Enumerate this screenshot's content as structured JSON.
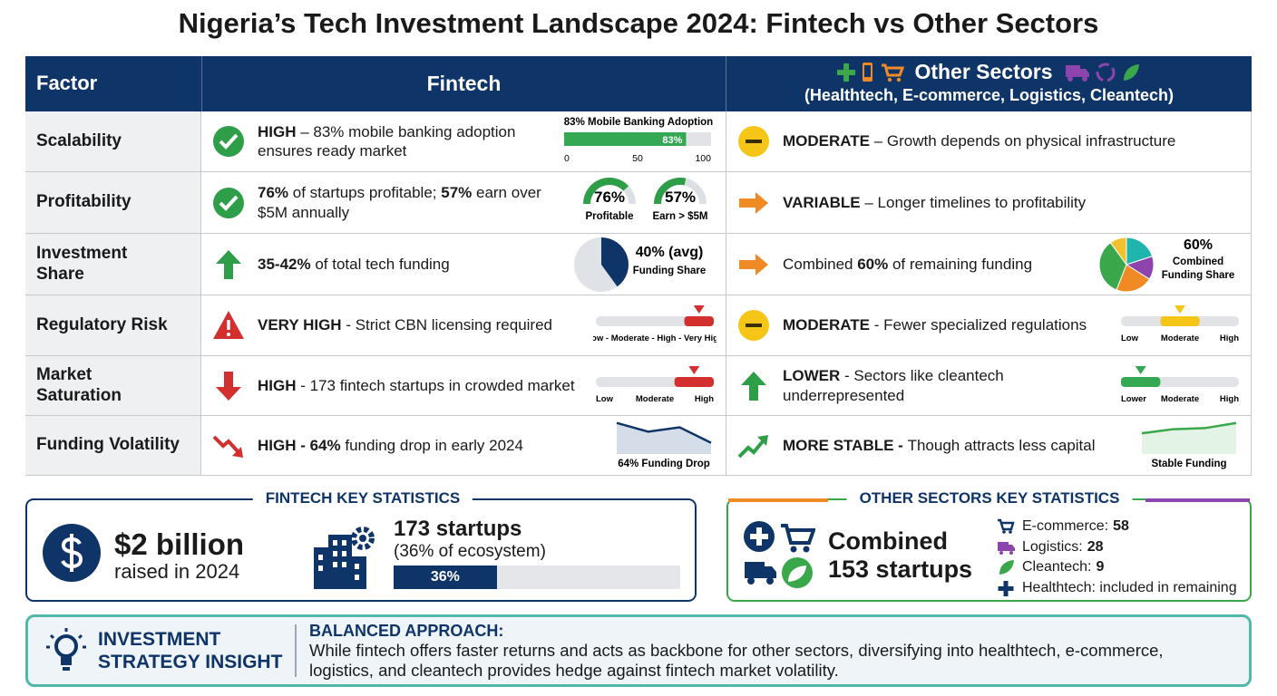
{
  "title": "Nigeria’s Tech Investment Landscape 2024: Fintech vs Other Sectors",
  "table": {
    "headers": {
      "factor": "Factor",
      "fintech": "Fintech",
      "other": "Other Sectors",
      "other_sub": "(Healthtech, E-commerce, Logistics, Cleantech)"
    },
    "rows": [
      {
        "factor": [
          "Scalability"
        ],
        "fintech": {
          "icon": "check",
          "text": [
            {
              "text": "HIGH",
              "bold": true
            },
            {
              "text": " – 83% mobile banking adoption ensures ready market"
            }
          ],
          "chart": {
            "type": "bar",
            "title": "83% Mobile Banking Adoption",
            "value": 83,
            "value_label": "83%",
            "xlim": [
              0,
              100
            ],
            "xticks": [
              0,
              50,
              100
            ],
            "color": "#34a853"
          }
        },
        "other": {
          "icon": "moderate",
          "text": [
            {
              "text": "MODERATE",
              "bold": true
            },
            {
              "text": " – Growth depends on physical infrastructure"
            }
          ]
        }
      },
      {
        "factor": [
          "Profitability"
        ],
        "fintech": {
          "icon": "check",
          "text": [
            {
              "text": "76%",
              "bold": true
            },
            {
              "text": " of startups profitable; "
            },
            {
              "text": "57%",
              "bold": true
            },
            {
              "text": " earn over $5M annually"
            }
          ],
          "chart": {
            "type": "gauges",
            "color": "#2e9e48",
            "items": [
              {
                "value": 76,
                "value_label": "76%",
                "label": "Profitable"
              },
              {
                "value": 57,
                "value_label": "57%",
                "label": "Earn > $5M"
              }
            ]
          }
        },
        "other": {
          "icon": "right",
          "text": [
            {
              "text": "VARIABLE",
              "bold": true
            },
            {
              "text": " – Longer timelines to profitability"
            }
          ]
        }
      },
      {
        "factor": [
          "Investment",
          "Share"
        ],
        "fintech": {
          "icon": "up",
          "text": [
            {
              "text": "35-42%",
              "bold": true
            },
            {
              "text": " of total tech funding"
            }
          ],
          "chart": {
            "type": "pie",
            "value": 40,
            "color": "#0f3568",
            "value_label": "40% (avg)",
            "labels": [
              "Funding Share"
            ]
          }
        },
        "other": {
          "icon": "right",
          "text": [
            {
              "text": "Combined "
            },
            {
              "text": "60%",
              "bold": true
            },
            {
              "text": " of remaining funding"
            }
          ],
          "chart": {
            "type": "pie",
            "value_label": "60%",
            "labels": [
              "Combined",
              "Funding Share"
            ],
            "segments": [
              {
                "value": 20,
                "color": "#1fb5ad"
              },
              {
                "value": 14,
                "color": "#8e44ad"
              },
              {
                "value": 22,
                "color": "#f08a24"
              },
              {
                "value": 34,
                "color": "#3aa84a"
              },
              {
                "value": 10,
                "color": "#f2c12e"
              }
            ]
          }
        }
      },
      {
        "factor": [
          "Regulatory Risk"
        ],
        "fintech": {
          "icon": "warning",
          "text": [
            {
              "text": "VERY HIGH",
              "bold": true
            },
            {
              "text": " - Strict CBN licensing required"
            }
          ],
          "chart": {
            "type": "scale",
            "labels": [
              "Low",
              "Moderate",
              "High",
              "Very High"
            ],
            "separator": " - ",
            "level": 3,
            "color": "#d32f2f"
          }
        },
        "other": {
          "icon": "moderate",
          "text": [
            {
              "text": "MODERATE",
              "bold": true
            },
            {
              "text": " - Fewer specialized regulations"
            }
          ],
          "chart": {
            "type": "scale",
            "labels": [
              "Low",
              "Moderate",
              "High"
            ],
            "level": 1,
            "color": "#f5c518"
          }
        }
      },
      {
        "factor": [
          "Market",
          "Saturation"
        ],
        "fintech": {
          "icon": "down",
          "text": [
            {
              "text": "HIGH",
              "bold": true
            },
            {
              "text": " - 173 fintech startups in crowded market"
            }
          ],
          "chart": {
            "type": "scale",
            "labels": [
              "Low",
              "Moderate",
              "High"
            ],
            "level": 2,
            "color": "#d32f2f"
          }
        },
        "other": {
          "icon": "up",
          "text": [
            {
              "text": "LOWER",
              "bold": true
            },
            {
              "text": " - Sectors like cleantech underrepresented"
            }
          ],
          "chart": {
            "type": "scale",
            "labels": [
              "Lower",
              "Moderate",
              "High"
            ],
            "level": 0,
            "color": "#34a853"
          }
        }
      },
      {
        "factor": [
          "Funding Volatility"
        ],
        "fintech": {
          "icon": "trend-down",
          "text": [
            {
              "text": "HIGH - 64%",
              "bold": true
            },
            {
              "text": " funding drop in early 2024"
            }
          ],
          "chart": {
            "type": "trend",
            "label": "64% Funding Drop",
            "values": [
              100,
              72,
              86,
              36
            ],
            "color": "#0f3568",
            "fill": "#d5dde8"
          }
        },
        "other": {
          "icon": "trend-up",
          "text": [
            {
              "text": "MORE STABLE - ",
              "bold": true
            },
            {
              "text": "Though attracts less capital"
            }
          ],
          "chart": {
            "type": "trend",
            "label": "Stable Funding",
            "values": [
              40,
              48,
              50,
              60
            ],
            "color": "#3aa84a",
            "fill": "#e3f3e5"
          }
        }
      }
    ]
  },
  "fintech_stats": {
    "title": "FINTECH KEY STATISTICS",
    "amount": "$2 billion",
    "amount_note": "raised in 2024",
    "startups": "173 startups",
    "startups_note": "(36% of ecosystem)",
    "share": 36,
    "share_label": "36%"
  },
  "other_stats": {
    "title": "OTHER SECTORS KEY STATISTICS",
    "line1": "Combined",
    "line2": "153 startups",
    "items": [
      {
        "icon": "cart",
        "label": "E-commerce:",
        "value": "58"
      },
      {
        "icon": "truck",
        "label": "Logistics:",
        "value": "28"
      },
      {
        "icon": "leaf",
        "label": "Cleantech:",
        "value": "9"
      },
      {
        "icon": "plus",
        "label": "Healthtech: included in remaining"
      }
    ]
  },
  "insight": {
    "title_lines": [
      "INVESTMENT",
      "STRATEGY INSIGHT"
    ],
    "heading": "BALANCED APPROACH:",
    "body": "While fintech offers faster returns and acts as backbone for other sectors, diversifying into healthtech, e-commerce, logistics, and cleantech provides hedge against fintech market volatility."
  }
}
